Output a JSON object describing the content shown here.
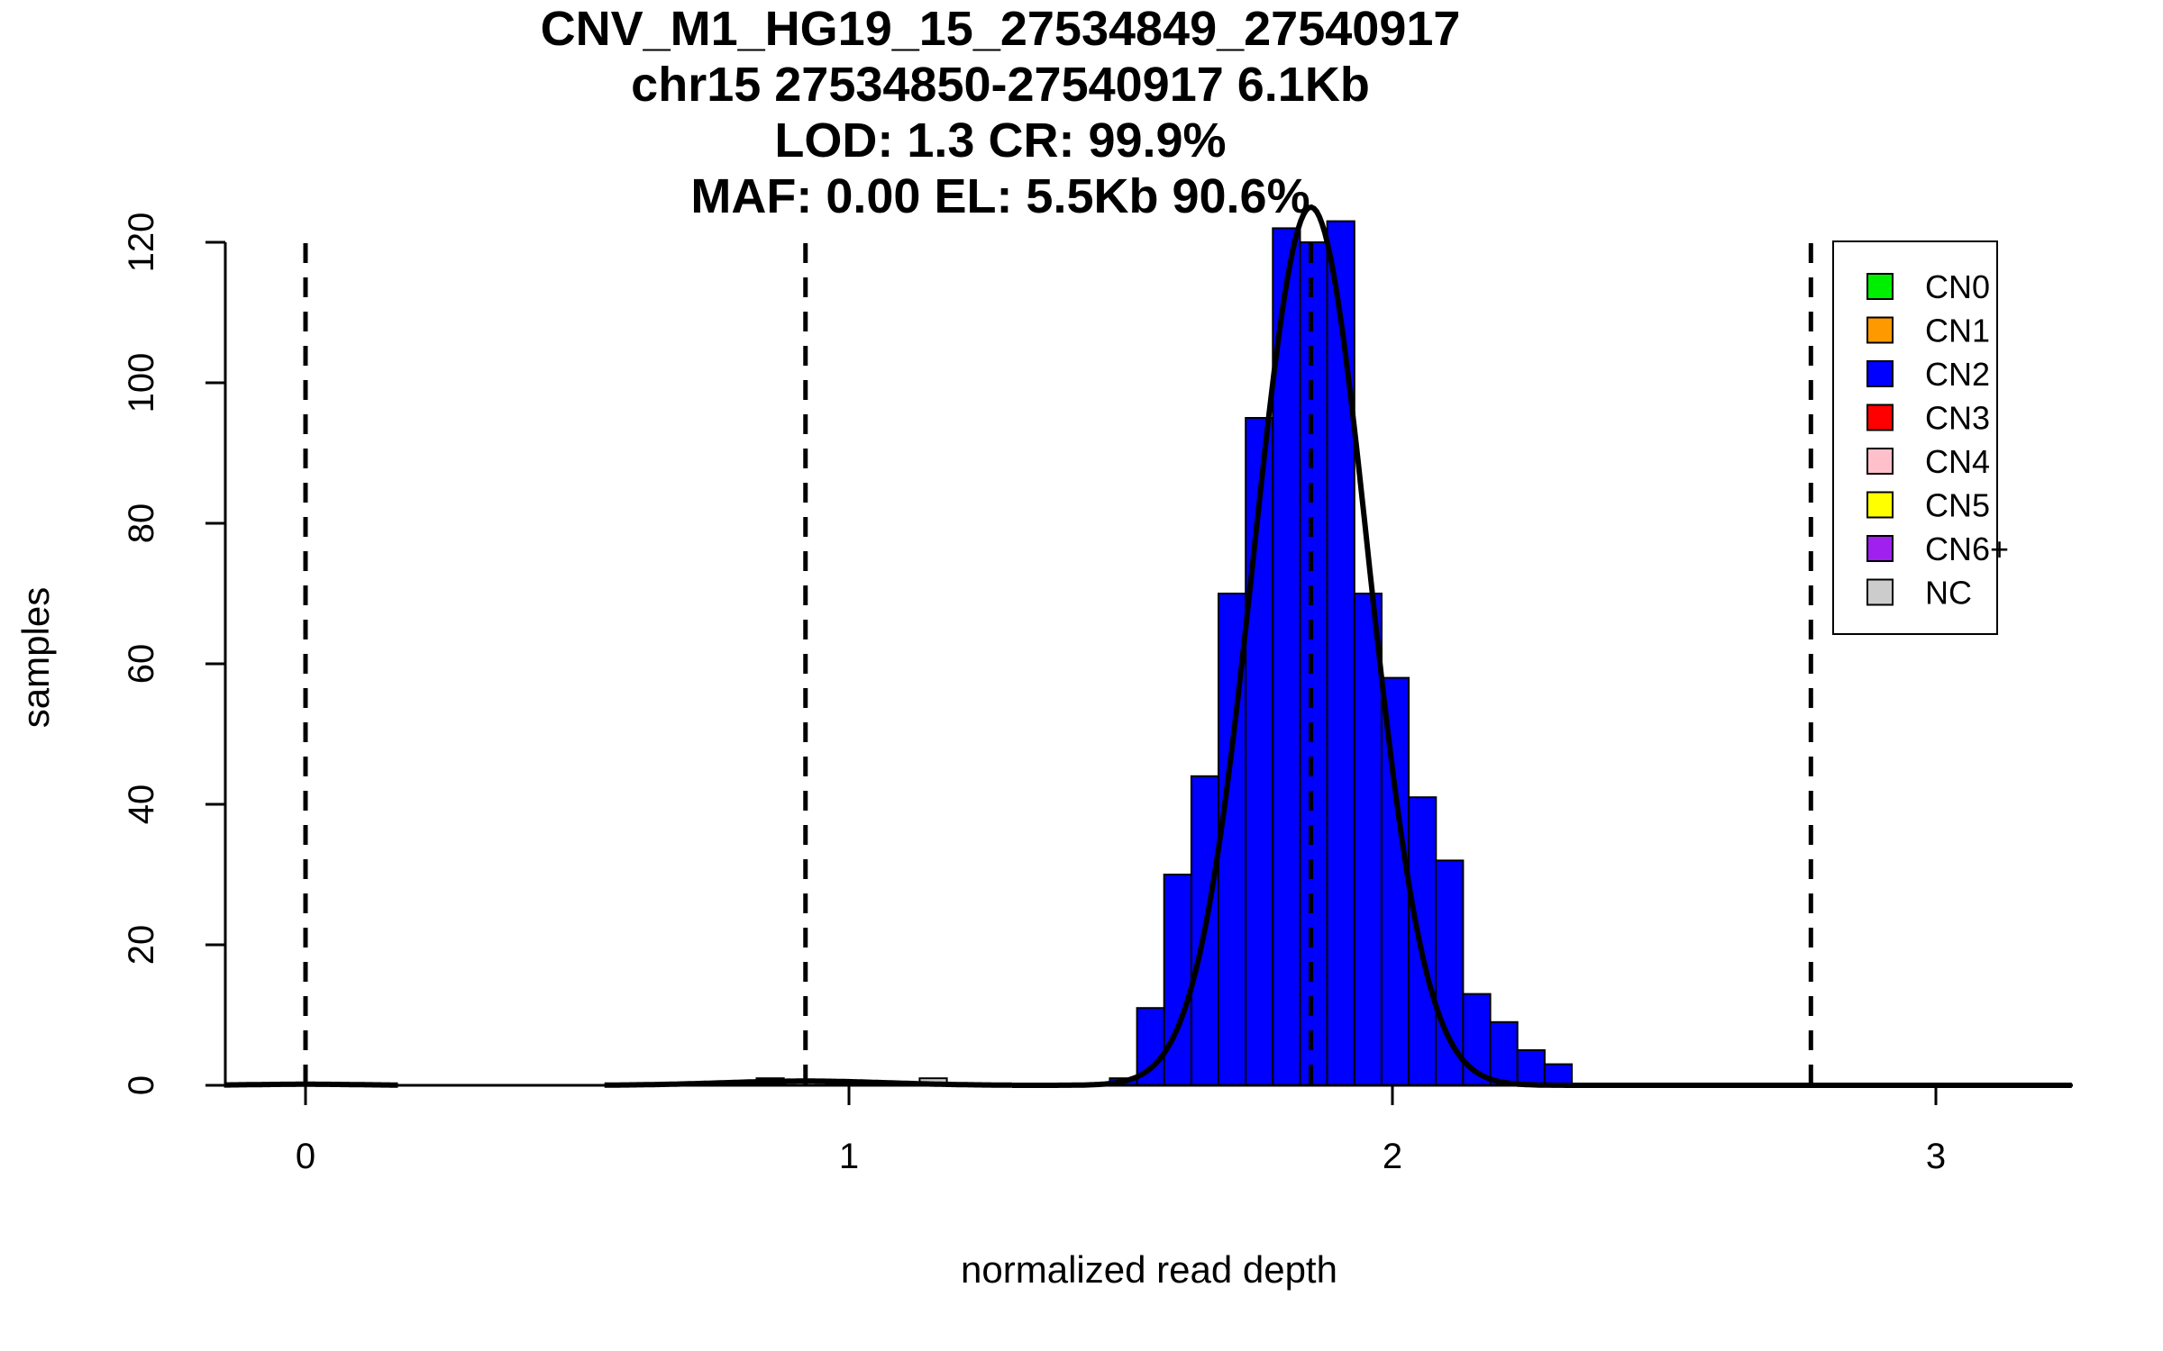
{
  "chart_data": {
    "type": "bar",
    "title_lines": [
      "CNV_M1_HG19_15_27534849_27540917",
      "chr15 27534850-27540917 6.1Kb",
      "LOD: 1.3 CR: 99.9%",
      "MAF: 0.00 EL: 5.5Kb 90.6%"
    ],
    "xlabel": "normalized read depth",
    "ylabel": "samples",
    "xlim": [
      -0.15,
      3.25
    ],
    "ylim": [
      0,
      120
    ],
    "x_ticks": [
      0,
      1,
      2,
      3
    ],
    "y_ticks": [
      0,
      20,
      40,
      60,
      80,
      100,
      120
    ],
    "grid": false,
    "legend_position": "top-right",
    "legend": [
      {
        "label": "CN0",
        "color": "#00ee00"
      },
      {
        "label": "CN1",
        "color": "#ff9900"
      },
      {
        "label": "CN2",
        "color": "#0000ff"
      },
      {
        "label": "CN3",
        "color": "#ff0000"
      },
      {
        "label": "CN4",
        "color": "#ffc0cb"
      },
      {
        "label": "CN5",
        "color": "#ffff00"
      },
      {
        "label": "CN6+",
        "color": "#a020f0"
      },
      {
        "label": "NC",
        "color": "#cccccc"
      }
    ],
    "thresholds": [
      0,
      0.92,
      1.85,
      2.77
    ],
    "bin_width": 0.05,
    "bars": [
      {
        "x0": 0.83,
        "value": 1,
        "color": "#0000ff"
      },
      {
        "x0": 1.13,
        "value": 1,
        "color": "#cccccc"
      },
      {
        "x0": 1.48,
        "value": 1,
        "color": "#0000ff"
      },
      {
        "x0": 1.53,
        "value": 11,
        "color": "#0000ff"
      },
      {
        "x0": 1.58,
        "value": 30,
        "color": "#0000ff"
      },
      {
        "x0": 1.63,
        "value": 44,
        "color": "#0000ff"
      },
      {
        "x0": 1.68,
        "value": 70,
        "color": "#0000ff"
      },
      {
        "x0": 1.73,
        "value": 95,
        "color": "#0000ff"
      },
      {
        "x0": 1.78,
        "value": 122,
        "color": "#0000ff"
      },
      {
        "x0": 1.83,
        "value": 120,
        "color": "#0000ff"
      },
      {
        "x0": 1.88,
        "value": 123,
        "color": "#0000ff"
      },
      {
        "x0": 1.93,
        "value": 70,
        "color": "#0000ff"
      },
      {
        "x0": 1.98,
        "value": 58,
        "color": "#0000ff"
      },
      {
        "x0": 2.03,
        "value": 41,
        "color": "#0000ff"
      },
      {
        "x0": 2.08,
        "value": 32,
        "color": "#0000ff"
      },
      {
        "x0": 2.13,
        "value": 13,
        "color": "#0000ff"
      },
      {
        "x0": 2.18,
        "value": 9,
        "color": "#0000ff"
      },
      {
        "x0": 2.23,
        "value": 5,
        "color": "#0000ff"
      },
      {
        "x0": 2.28,
        "value": 3,
        "color": "#0000ff"
      }
    ],
    "fit_curves": [
      {
        "name": "CN2 fit",
        "mean": 1.85,
        "sd": 0.105,
        "peak": 125,
        "x_range": [
          1.3,
          3.25
        ]
      },
      {
        "name": "CN1 fit",
        "mean": 0.92,
        "sd": 0.15,
        "peak": 0.6,
        "x_range": [
          0.55,
          1.3
        ]
      },
      {
        "name": "CN0 fit",
        "mean": 0.0,
        "sd": 0.1,
        "peak": 0.15,
        "x_range": [
          -0.15,
          0.17
        ]
      }
    ]
  }
}
